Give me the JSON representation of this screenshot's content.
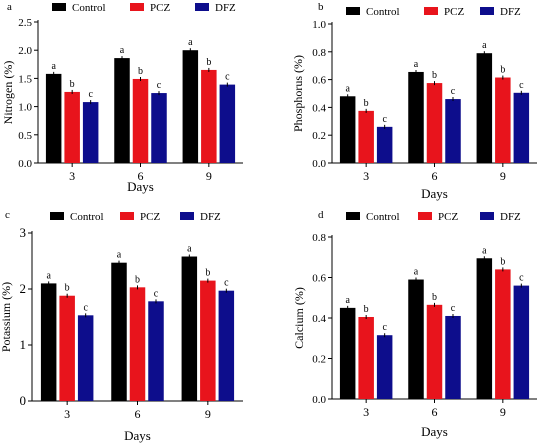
{
  "chart_data": [
    {
      "type": "bar",
      "panel_label": "a",
      "categories": [
        "3",
        "6",
        "9"
      ],
      "xlabel": "Days",
      "ylabel": "Nitrogen (%)",
      "ylim": [
        0,
        2.5
      ],
      "yticks": [
        "0.0",
        "0.5",
        "1.0",
        "1.5",
        "2.0",
        "2.5"
      ],
      "series": [
        {
          "name": "Control",
          "color": "#000000",
          "values": [
            1.58,
            1.86,
            2.0
          ],
          "letters": [
            "a",
            "a",
            "a"
          ]
        },
        {
          "name": "PCZ",
          "color": "#e8141c",
          "values": [
            1.26,
            1.49,
            1.65
          ],
          "letters": [
            "b",
            "b",
            "b"
          ]
        },
        {
          "name": "DFZ",
          "color": "#0d0d8c",
          "values": [
            1.08,
            1.24,
            1.39
          ],
          "letters": [
            "c",
            "c",
            "c"
          ]
        }
      ]
    },
    {
      "type": "bar",
      "panel_label": "b",
      "categories": [
        "3",
        "6",
        "9"
      ],
      "xlabel": "Days",
      "ylabel": "Phosphorus (%)",
      "ylim": [
        0,
        1.0
      ],
      "yticks": [
        "0.0",
        "0.2",
        "0.4",
        "0.6",
        "0.8",
        "1.0"
      ],
      "series": [
        {
          "name": "Control",
          "color": "#000000",
          "values": [
            0.48,
            0.655,
            0.79
          ],
          "letters": [
            "a",
            "a",
            "a"
          ]
        },
        {
          "name": "PCZ",
          "color": "#e8141c",
          "values": [
            0.375,
            0.575,
            0.615
          ],
          "letters": [
            "b",
            "b",
            "b"
          ]
        },
        {
          "name": "DFZ",
          "color": "#0d0d8c",
          "values": [
            0.26,
            0.46,
            0.505
          ],
          "letters": [
            "c",
            "c",
            "c"
          ]
        }
      ]
    },
    {
      "type": "bar",
      "panel_label": "c",
      "categories": [
        "3",
        "6",
        "9"
      ],
      "xlabel": "Days",
      "ylabel": "Potassium (%)",
      "ylim": [
        0,
        3
      ],
      "yticks": [
        "0",
        "1",
        "2",
        "3"
      ],
      "series": [
        {
          "name": "Control",
          "color": "#000000",
          "values": [
            2.1,
            2.47,
            2.58
          ],
          "letters": [
            "a",
            "a",
            "a"
          ]
        },
        {
          "name": "PCZ",
          "color": "#e8141c",
          "values": [
            1.88,
            2.03,
            2.15
          ],
          "letters": [
            "b",
            "b",
            "b"
          ]
        },
        {
          "name": "DFZ",
          "color": "#0d0d8c",
          "values": [
            1.53,
            1.78,
            1.97
          ],
          "letters": [
            "c",
            "c",
            "c"
          ]
        }
      ]
    },
    {
      "type": "bar",
      "panel_label": "d",
      "categories": [
        "3",
        "6",
        "9"
      ],
      "xlabel": "Days",
      "ylabel": "Calcium (%)",
      "ylim": [
        0,
        0.8
      ],
      "yticks": [
        "0.0",
        "0.2",
        "0.4",
        "0.6",
        "0.8"
      ],
      "series": [
        {
          "name": "Control",
          "color": "#000000",
          "values": [
            0.45,
            0.59,
            0.695
          ],
          "letters": [
            "a",
            "a",
            "a"
          ]
        },
        {
          "name": "PCZ",
          "color": "#e8141c",
          "values": [
            0.405,
            0.465,
            0.64
          ],
          "letters": [
            "b",
            "b",
            "b"
          ]
        },
        {
          "name": "DFZ",
          "color": "#0d0d8c",
          "values": [
            0.315,
            0.41,
            0.56
          ],
          "letters": [
            "c",
            "c",
            "c"
          ]
        }
      ]
    }
  ]
}
